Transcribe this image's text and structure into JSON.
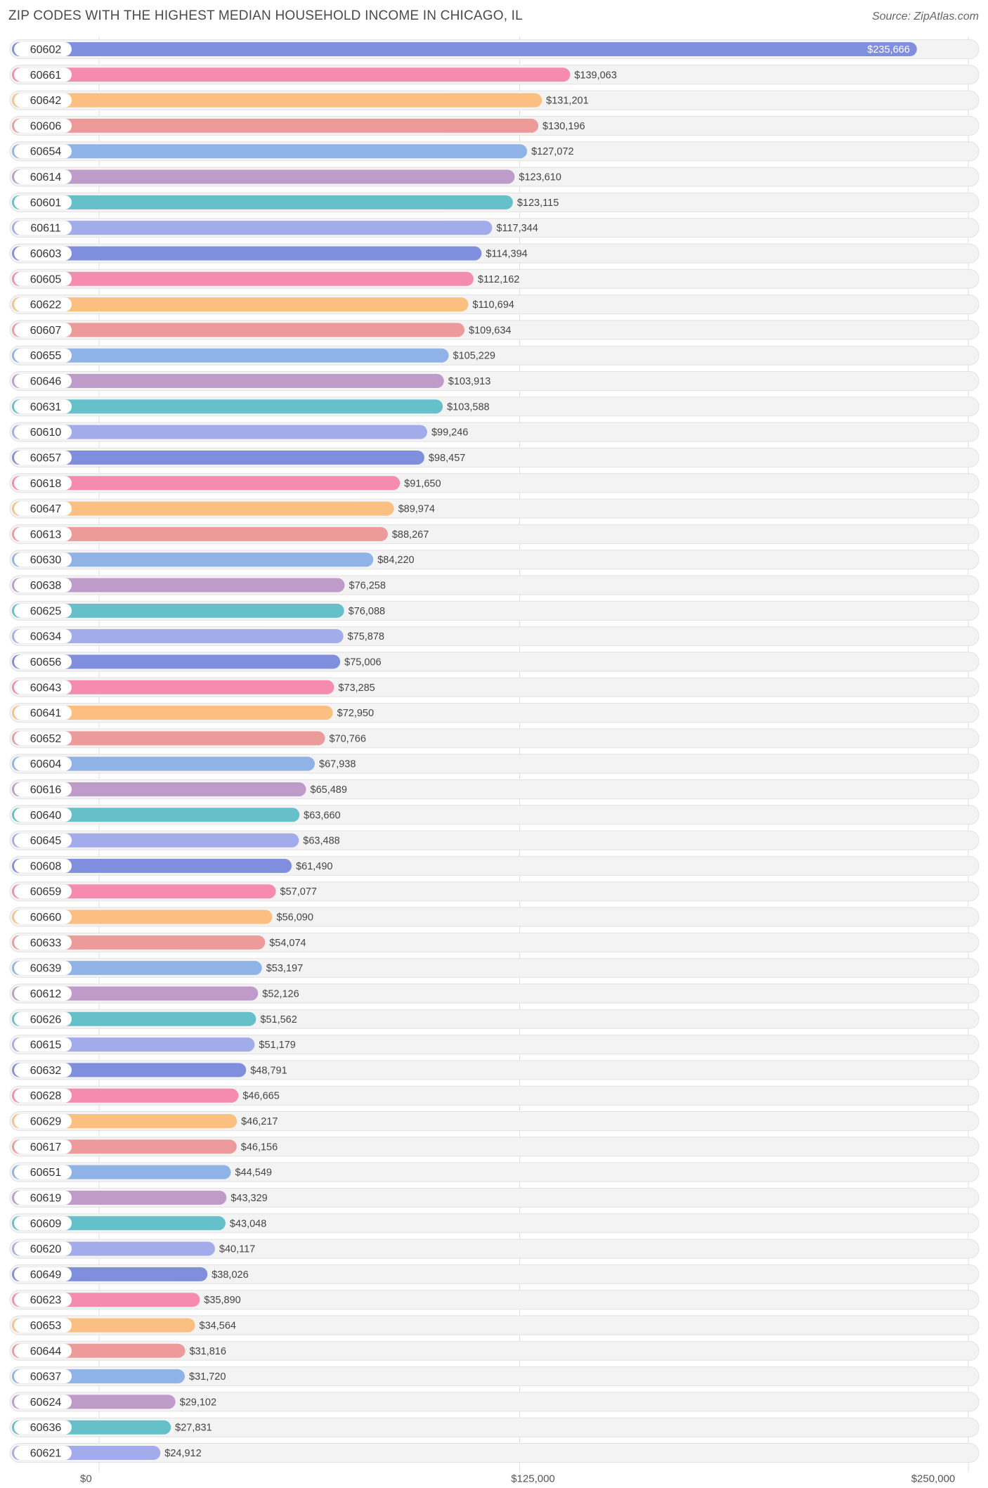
{
  "title": "ZIP CODES WITH THE HIGHEST MEDIAN HOUSEHOLD INCOME IN CHICAGO, IL",
  "source": "Source: ZipAtlas.com",
  "palette": [
    "#7f8fdd",
    "#f58bae",
    "#fbbf82",
    "#ec9a9a",
    "#8fb3e6",
    "#be9bc9",
    "#66c0ca",
    "#a3acea"
  ],
  "chart_data": {
    "type": "bar",
    "orientation": "horizontal",
    "categories": [
      "60602",
      "60661",
      "60642",
      "60606",
      "60654",
      "60614",
      "60601",
      "60611",
      "60603",
      "60605",
      "60622",
      "60607",
      "60655",
      "60646",
      "60631",
      "60610",
      "60657",
      "60618",
      "60647",
      "60613",
      "60630",
      "60638",
      "60625",
      "60634",
      "60656",
      "60643",
      "60641",
      "60652",
      "60604",
      "60616",
      "60640",
      "60645",
      "60608",
      "60659",
      "60660",
      "60633",
      "60639",
      "60612",
      "60626",
      "60615",
      "60632",
      "60628",
      "60629",
      "60617",
      "60651",
      "60619",
      "60609",
      "60620",
      "60649",
      "60623",
      "60653",
      "60644",
      "60637",
      "60624",
      "60636",
      "60621"
    ],
    "values": [
      235666,
      139063,
      131201,
      130196,
      127072,
      123610,
      123115,
      117344,
      114394,
      112162,
      110694,
      109634,
      105229,
      103913,
      103588,
      99246,
      98457,
      91650,
      89974,
      88267,
      84220,
      76258,
      76088,
      75878,
      75006,
      73285,
      72950,
      70766,
      67938,
      65489,
      63660,
      63488,
      61490,
      57077,
      56090,
      54074,
      53197,
      52126,
      51562,
      51179,
      48791,
      46665,
      46217,
      46156,
      44549,
      43329,
      43048,
      40117,
      38026,
      35890,
      34564,
      31816,
      31720,
      29102,
      27831,
      24912
    ],
    "value_labels": [
      "$235,666",
      "$139,063",
      "$131,201",
      "$130,196",
      "$127,072",
      "$123,610",
      "$123,115",
      "$117,344",
      "$114,394",
      "$112,162",
      "$110,694",
      "$109,634",
      "$105,229",
      "$103,913",
      "$103,588",
      "$99,246",
      "$98,457",
      "$91,650",
      "$89,974",
      "$88,267",
      "$84,220",
      "$76,258",
      "$76,088",
      "$75,878",
      "$75,006",
      "$73,285",
      "$72,950",
      "$70,766",
      "$67,938",
      "$65,489",
      "$63,660",
      "$63,488",
      "$61,490",
      "$57,077",
      "$56,090",
      "$54,074",
      "$53,197",
      "$52,126",
      "$51,562",
      "$51,179",
      "$48,791",
      "$46,665",
      "$46,217",
      "$46,156",
      "$44,549",
      "$43,329",
      "$43,048",
      "$40,117",
      "$38,026",
      "$35,890",
      "$34,564",
      "$31,816",
      "$31,720",
      "$29,102",
      "$27,831",
      "$24,912"
    ],
    "xlim": [
      0,
      250000
    ],
    "x_ticks": [
      0,
      125000,
      250000
    ],
    "x_tick_labels": [
      "$0",
      "$125,000",
      "$250,000"
    ],
    "grid": true,
    "legend": "none"
  }
}
